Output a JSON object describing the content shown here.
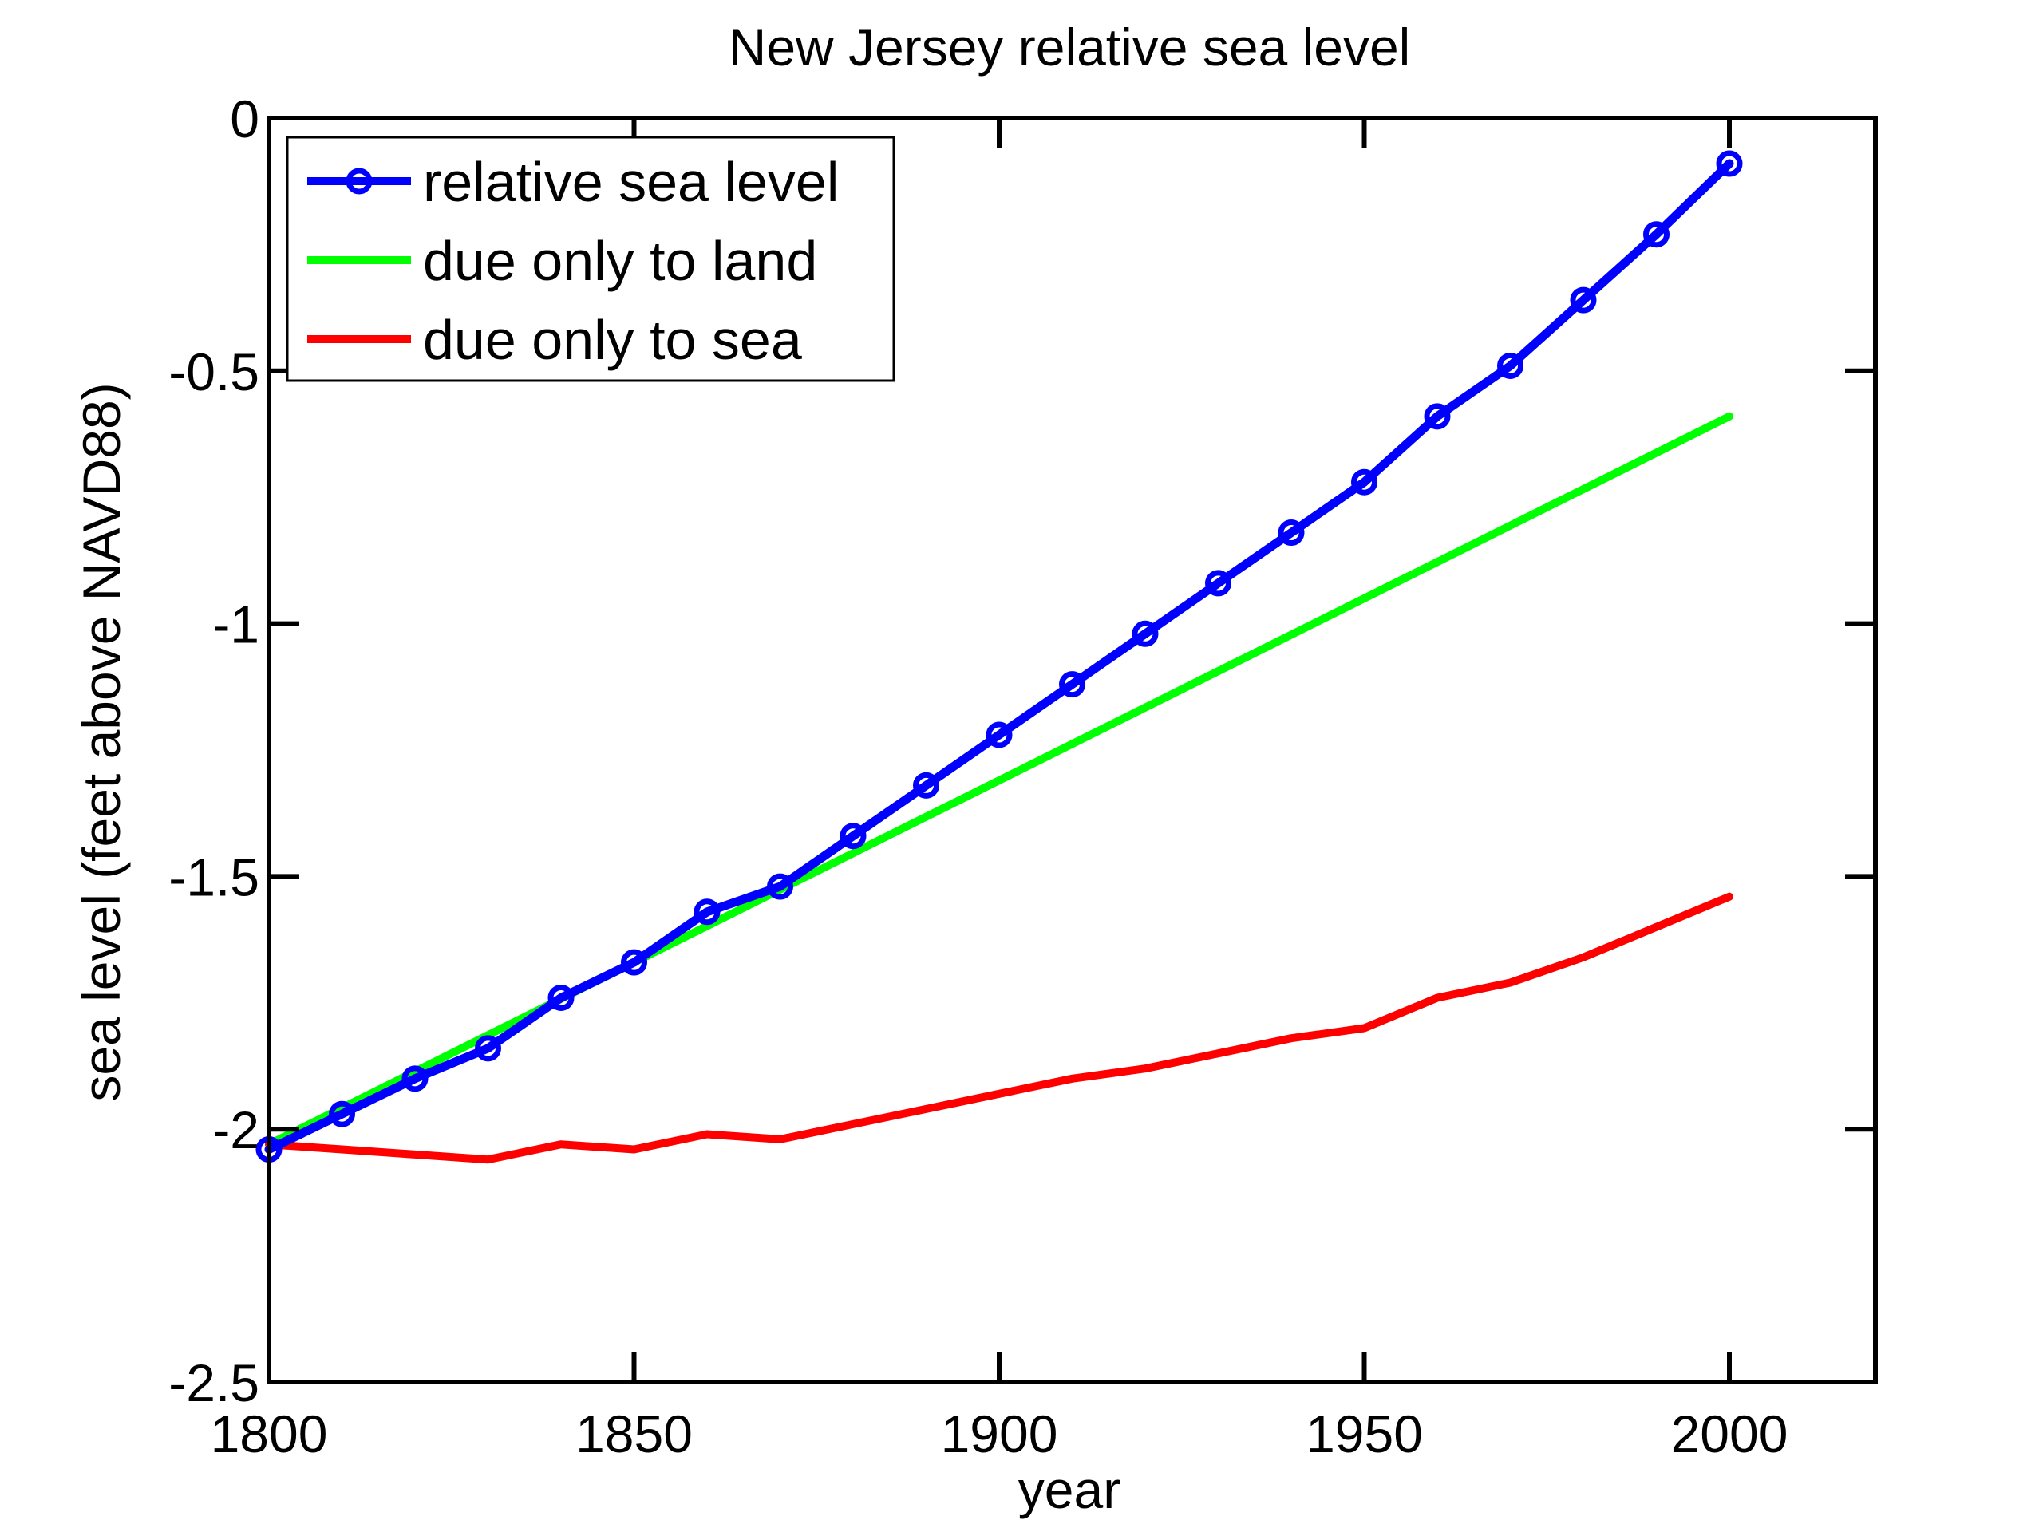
{
  "chart_data": {
    "type": "line",
    "title": "New Jersey relative sea level",
    "xlabel": "year",
    "ylabel": "sea level (feet above NAVD88)",
    "xlim": [
      1800,
      2020
    ],
    "ylim": [
      -2.5,
      0
    ],
    "xticks": [
      1800,
      1850,
      1900,
      1950,
      2000
    ],
    "xtick_labels": [
      "1800",
      "1850",
      "1900",
      "1950",
      "2000"
    ],
    "yticks": [
      0,
      -0.5,
      -1,
      -1.5,
      -2,
      -2.5
    ],
    "ytick_labels": [
      "0",
      "-0.5",
      "-1",
      "-1.5",
      "-2",
      "-2.5"
    ],
    "grid": false,
    "legend_position": "top-left",
    "series": [
      {
        "name": "relative sea level",
        "color": "#0000ff",
        "marker": "circle",
        "x": [
          1800,
          1810,
          1820,
          1830,
          1840,
          1850,
          1860,
          1870,
          1880,
          1890,
          1900,
          1910,
          1920,
          1930,
          1940,
          1950,
          1960,
          1970,
          1980,
          1990,
          2000
        ],
        "y": [
          -2.04,
          -1.97,
          -1.9,
          -1.84,
          -1.74,
          -1.67,
          -1.57,
          -1.52,
          -1.42,
          -1.32,
          -1.22,
          -1.12,
          -1.02,
          -0.92,
          -0.82,
          -0.72,
          -0.59,
          -0.49,
          -0.36,
          -0.23,
          -0.09
        ]
      },
      {
        "name": "due only to land",
        "color": "#00ff00",
        "marker": "none",
        "x": [
          1800,
          2000
        ],
        "y": [
          -2.03,
          -0.59
        ]
      },
      {
        "name": "due only to sea",
        "color": "#ff0000",
        "marker": "none",
        "x": [
          1800,
          1810,
          1820,
          1830,
          1840,
          1850,
          1860,
          1870,
          1880,
          1890,
          1900,
          1910,
          1920,
          1930,
          1940,
          1950,
          1960,
          1970,
          1980,
          1990,
          2000
        ],
        "y": [
          -2.03,
          -2.04,
          -2.05,
          -2.06,
          -2.03,
          -2.04,
          -2.01,
          -2.02,
          -1.99,
          -1.96,
          -1.93,
          -1.9,
          -1.88,
          -1.85,
          -1.82,
          -1.8,
          -1.74,
          -1.71,
          -1.66,
          -1.6,
          -1.54
        ]
      }
    ]
  }
}
